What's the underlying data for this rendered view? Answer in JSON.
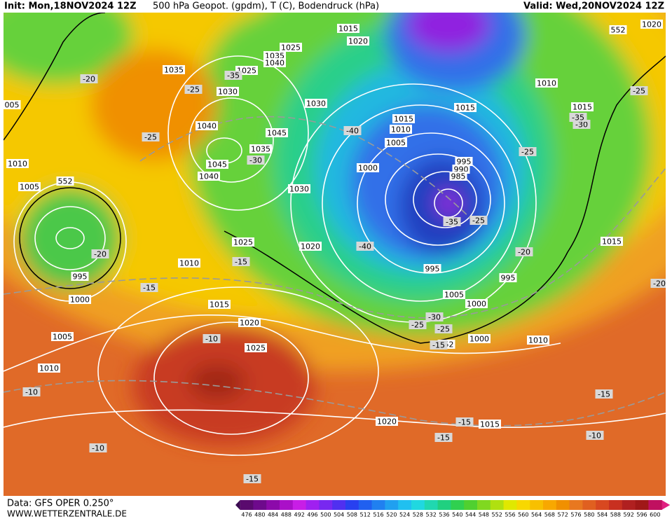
{
  "header": {
    "init": "Init: Mon,18NOV2024 12Z",
    "title": "500 hPa Geopot. (gpdm), T (C), Bodendruck (hPa)",
    "valid": "Valid: Wed,20NOV2024 12Z"
  },
  "footer": {
    "data": "Data: GFS OPER 0.250°",
    "site": "WWW.WETTERZENTRALE.DE"
  },
  "colorbar": {
    "labels": [
      476,
      480,
      484,
      488,
      492,
      496,
      500,
      504,
      508,
      512,
      516,
      520,
      524,
      528,
      532,
      536,
      540,
      544,
      548,
      552,
      556,
      560,
      564,
      568,
      572,
      576,
      580,
      584,
      588,
      592,
      596,
      600
    ],
    "colors": [
      "#5a0a6e",
      "#6e0a8c",
      "#8c0aaa",
      "#aa10c8",
      "#c81ee6",
      "#a020f0",
      "#7828f0",
      "#5030f0",
      "#2840f0",
      "#2060f0",
      "#2080f0",
      "#20a0f0",
      "#20c0f0",
      "#20d8e0",
      "#20d8b0",
      "#20d080",
      "#30d050",
      "#50d030",
      "#80d820",
      "#b0e010",
      "#e0e800",
      "#f8d800",
      "#f8c000",
      "#f8a800",
      "#f09000",
      "#e87820",
      "#e06020",
      "#d84820",
      "#c83020",
      "#b02020",
      "#a01818",
      "#c01060"
    ]
  },
  "isobar_labels": [
    "1015",
    "1020",
    "1010",
    "1015",
    "1015",
    "1015",
    "1010",
    "1005",
    "1000",
    "995",
    "990",
    "985",
    "1025",
    "1035",
    "1040",
    "1035",
    "1025",
    "1030",
    "1030",
    "1040",
    "1045",
    "1035",
    "1045",
    "1040",
    "1030",
    "1010",
    "1005",
    "1025",
    "1020",
    "1010",
    "995",
    "1000",
    "995",
    "995",
    "1015",
    "1005",
    "1000",
    "1015",
    "1020",
    "1000",
    "1010",
    "1025",
    "1005",
    "1010",
    "1020",
    "1015",
    "1020",
    "005",
    "552",
    "552",
    "552"
  ],
  "temperature_labels": [
    "-20",
    "-25",
    "-25",
    "-35",
    "-30",
    "-40",
    "-30",
    "-35",
    "-25",
    "-25",
    "-35",
    "-25",
    "-40",
    "-20",
    "-20",
    "-15",
    "-15",
    "-20",
    "-10",
    "-10",
    "-15",
    "-15",
    "-15",
    "-10",
    "-10",
    "-15",
    "-25",
    "-30",
    "-25",
    "-15"
  ]
}
